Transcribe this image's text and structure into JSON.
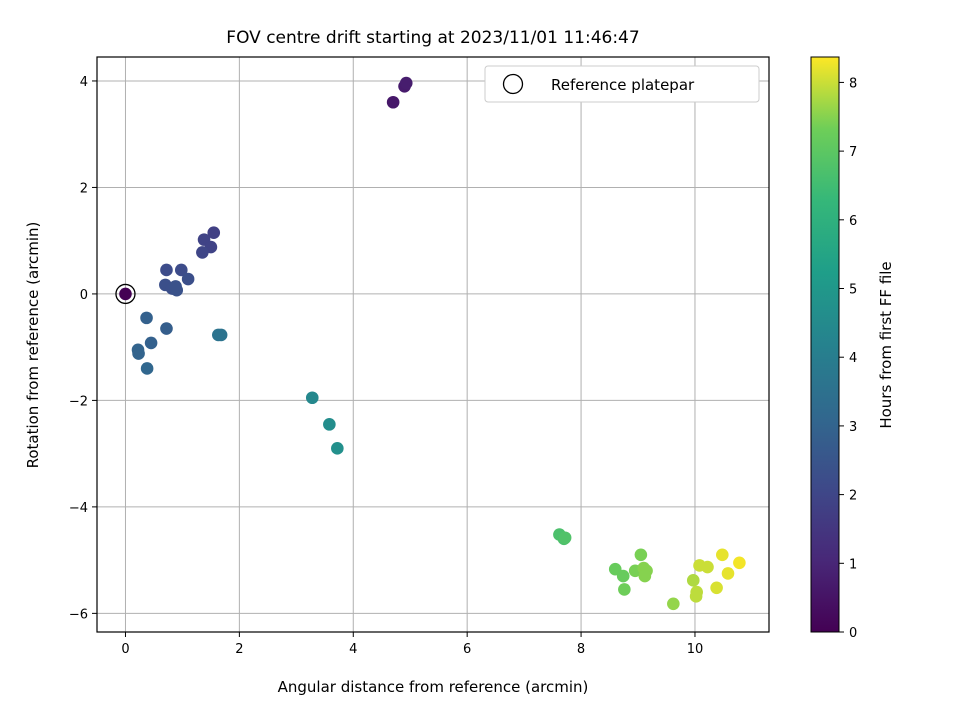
{
  "chart_data": {
    "type": "scatter",
    "title": "FOV centre drift starting at 2023/11/01 11:46:47",
    "xlabel": "Angular distance from reference (arcmin)",
    "ylabel": "Rotation from reference (arcmin)",
    "xlim": [
      -0.5,
      11.3
    ],
    "ylim": [
      -6.35,
      4.45
    ],
    "xticks": [
      0,
      2,
      4,
      6,
      8,
      10
    ],
    "yticks": [
      -6,
      -4,
      -2,
      0,
      2,
      4
    ],
    "xtick_labels": [
      "0",
      "2",
      "4",
      "6",
      "8",
      "10"
    ],
    "ytick_labels": [
      "−6",
      "−4",
      "−2",
      "0",
      "2",
      "4"
    ],
    "grid": true,
    "legend": {
      "position": "top-right",
      "entries": [
        "Reference platepar"
      ]
    },
    "colorbar": {
      "label": "Hours from first FF file",
      "min": 0,
      "max": 8.37,
      "ticks": [
        0,
        1,
        2,
        3,
        4,
        5,
        6,
        7,
        8
      ],
      "tick_labels": [
        "0",
        "1",
        "2",
        "3",
        "4",
        "5",
        "6",
        "7",
        "8"
      ],
      "colormap": "viridis"
    },
    "reference_point": {
      "x": 0,
      "y": 0,
      "hours": 0
    },
    "points": [
      {
        "x": 0.0,
        "y": 0.0,
        "hours": 0.0
      },
      {
        "x": 4.7,
        "y": 3.6,
        "hours": 0.6
      },
      {
        "x": 4.9,
        "y": 3.9,
        "hours": 0.7
      },
      {
        "x": 4.93,
        "y": 3.96,
        "hours": 0.75
      },
      {
        "x": 1.55,
        "y": 1.15,
        "hours": 1.8
      },
      {
        "x": 1.38,
        "y": 1.02,
        "hours": 1.9
      },
      {
        "x": 1.5,
        "y": 0.88,
        "hours": 1.9
      },
      {
        "x": 1.35,
        "y": 0.78,
        "hours": 2.0
      },
      {
        "x": 0.72,
        "y": 0.45,
        "hours": 2.2
      },
      {
        "x": 0.98,
        "y": 0.45,
        "hours": 2.2
      },
      {
        "x": 1.1,
        "y": 0.28,
        "hours": 2.3
      },
      {
        "x": 0.7,
        "y": 0.17,
        "hours": 2.3
      },
      {
        "x": 0.82,
        "y": 0.1,
        "hours": 2.3
      },
      {
        "x": 0.9,
        "y": 0.07,
        "hours": 2.4
      },
      {
        "x": 0.88,
        "y": 0.14,
        "hours": 2.4
      },
      {
        "x": 0.72,
        "y": -0.65,
        "hours": 2.8
      },
      {
        "x": 0.37,
        "y": -0.45,
        "hours": 2.9
      },
      {
        "x": 0.45,
        "y": -0.92,
        "hours": 2.9
      },
      {
        "x": 0.22,
        "y": -1.05,
        "hours": 3.0
      },
      {
        "x": 0.23,
        "y": -1.12,
        "hours": 3.0
      },
      {
        "x": 0.38,
        "y": -1.4,
        "hours": 3.1
      },
      {
        "x": 1.63,
        "y": -0.77,
        "hours": 3.6
      },
      {
        "x": 1.68,
        "y": -0.77,
        "hours": 3.6
      },
      {
        "x": 3.28,
        "y": -1.95,
        "hours": 4.4
      },
      {
        "x": 3.58,
        "y": -2.45,
        "hours": 4.6
      },
      {
        "x": 3.72,
        "y": -2.9,
        "hours": 4.7
      },
      {
        "x": 7.62,
        "y": -4.52,
        "hours": 6.7
      },
      {
        "x": 7.7,
        "y": -4.6,
        "hours": 6.7
      },
      {
        "x": 7.72,
        "y": -4.58,
        "hours": 6.8
      },
      {
        "x": 8.6,
        "y": -5.17,
        "hours": 7.2
      },
      {
        "x": 8.74,
        "y": -5.3,
        "hours": 7.2
      },
      {
        "x": 8.76,
        "y": -5.55,
        "hours": 7.3
      },
      {
        "x": 8.95,
        "y": -5.2,
        "hours": 7.4
      },
      {
        "x": 9.05,
        "y": -4.9,
        "hours": 7.4
      },
      {
        "x": 9.1,
        "y": -5.15,
        "hours": 7.5
      },
      {
        "x": 9.15,
        "y": -5.2,
        "hours": 7.5
      },
      {
        "x": 9.12,
        "y": -5.3,
        "hours": 7.5
      },
      {
        "x": 9.62,
        "y": -5.82,
        "hours": 7.6
      },
      {
        "x": 9.97,
        "y": -5.38,
        "hours": 7.8
      },
      {
        "x": 10.03,
        "y": -5.6,
        "hours": 7.9
      },
      {
        "x": 10.02,
        "y": -5.68,
        "hours": 7.9
      },
      {
        "x": 10.08,
        "y": -5.1,
        "hours": 8.0
      },
      {
        "x": 10.22,
        "y": -5.13,
        "hours": 8.0
      },
      {
        "x": 10.38,
        "y": -5.52,
        "hours": 8.1
      },
      {
        "x": 10.48,
        "y": -4.9,
        "hours": 8.2
      },
      {
        "x": 10.58,
        "y": -5.25,
        "hours": 8.2
      },
      {
        "x": 10.78,
        "y": -5.05,
        "hours": 8.3
      }
    ]
  }
}
